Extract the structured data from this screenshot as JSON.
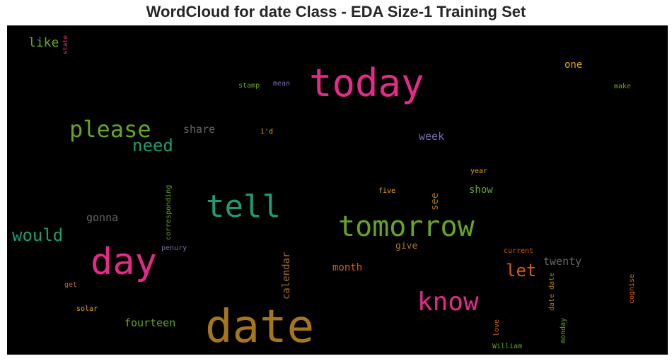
{
  "chart_data": {
    "type": "wordcloud",
    "title": "WordCloud for date Class - EDA Size-1 Training Set",
    "background": "#000000",
    "colors": {
      "pink": "#e7298a",
      "green": "#66a61e",
      "teal": "#1b9e77",
      "brown": "#a6761d",
      "orange": "#d95f02",
      "purple": "#7570b3",
      "gold": "#e6ab02",
      "gray": "#666666"
    },
    "words": [
      {
        "text": "date",
        "weight": 1.0,
        "color": "#a6761d",
        "rotated": false
      },
      {
        "text": "today",
        "weight": 0.85,
        "color": "#e7298a",
        "rotated": false
      },
      {
        "text": "day",
        "weight": 0.82,
        "color": "#e7298a",
        "rotated": false
      },
      {
        "text": "tomorrow",
        "weight": 0.65,
        "color": "#66a61e",
        "rotated": false
      },
      {
        "text": "tell",
        "weight": 0.7,
        "color": "#1b9e77",
        "rotated": false
      },
      {
        "text": "know",
        "weight": 0.6,
        "color": "#e7298a",
        "rotated": false
      },
      {
        "text": "please",
        "weight": 0.5,
        "color": "#66a61e",
        "rotated": false
      },
      {
        "text": "would",
        "weight": 0.42,
        "color": "#1b9e77",
        "rotated": false
      },
      {
        "text": "need",
        "weight": 0.4,
        "color": "#1b9e77",
        "rotated": false
      },
      {
        "text": "let",
        "weight": 0.42,
        "color": "#d95f02",
        "rotated": false
      },
      {
        "text": "like",
        "weight": 0.3,
        "color": "#66a61e",
        "rotated": false
      },
      {
        "text": "share",
        "weight": 0.28,
        "color": "#666666",
        "rotated": false
      },
      {
        "text": "gonna",
        "weight": 0.28,
        "color": "#666666",
        "rotated": false
      },
      {
        "text": "week",
        "weight": 0.26,
        "color": "#7570b3",
        "rotated": false
      },
      {
        "text": "show",
        "weight": 0.24,
        "color": "#66a61e",
        "rotated": false
      },
      {
        "text": "twenty",
        "weight": 0.26,
        "color": "#666666",
        "rotated": false
      },
      {
        "text": "month",
        "weight": 0.24,
        "color": "#d95f02",
        "rotated": false
      },
      {
        "text": "fourteen",
        "weight": 0.26,
        "color": "#66a61e",
        "rotated": false
      },
      {
        "text": "give",
        "weight": 0.22,
        "color": "#a6761d",
        "rotated": false
      },
      {
        "text": "one",
        "weight": 0.24,
        "color": "#e6ab02",
        "rotated": false
      },
      {
        "text": "calendar",
        "weight": 0.24,
        "color": "#a6761d",
        "rotated": true
      },
      {
        "text": "see",
        "weight": 0.24,
        "color": "#a6761d",
        "rotated": true
      },
      {
        "text": "corresponding",
        "weight": 0.16,
        "color": "#66a61e",
        "rotated": true
      },
      {
        "text": "state",
        "weight": 0.14,
        "color": "#e7298a",
        "rotated": true
      },
      {
        "text": "stamp",
        "weight": 0.15,
        "color": "#66a61e",
        "rotated": false
      },
      {
        "text": "mean",
        "weight": 0.15,
        "color": "#7570b3",
        "rotated": false
      },
      {
        "text": "make",
        "weight": 0.15,
        "color": "#66a61e",
        "rotated": false
      },
      {
        "text": "i'd",
        "weight": 0.15,
        "color": "#e6ab02",
        "rotated": false
      },
      {
        "text": "year",
        "weight": 0.15,
        "color": "#e6ab02",
        "rotated": false
      },
      {
        "text": "five",
        "weight": 0.15,
        "color": "#e6ab02",
        "rotated": false
      },
      {
        "text": "penury",
        "weight": 0.15,
        "color": "#7570b3",
        "rotated": false
      },
      {
        "text": "current",
        "weight": 0.15,
        "color": "#d95f02",
        "rotated": false
      },
      {
        "text": "get",
        "weight": 0.15,
        "color": "#a6761d",
        "rotated": false
      },
      {
        "text": "solar",
        "weight": 0.15,
        "color": "#e6ab02",
        "rotated": false
      },
      {
        "text": "William",
        "weight": 0.15,
        "color": "#66a61e",
        "rotated": false
      },
      {
        "text": "date date",
        "weight": 0.15,
        "color": "#a6761d",
        "rotated": true
      },
      {
        "text": "monday",
        "weight": 0.15,
        "color": "#66a61e",
        "rotated": true
      },
      {
        "text": "love",
        "weight": 0.15,
        "color": "#d95f02",
        "rotated": true
      },
      {
        "text": "cognise",
        "weight": 0.15,
        "color": "#d95f02",
        "rotated": true
      }
    ]
  }
}
